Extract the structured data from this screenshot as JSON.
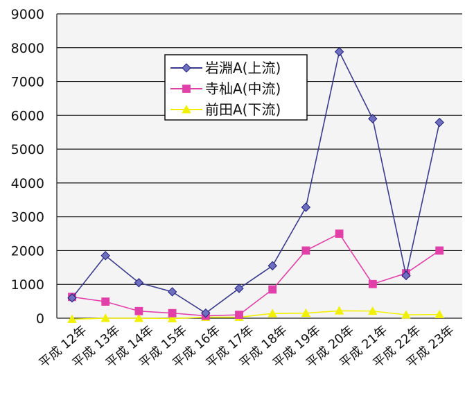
{
  "chart_data": {
    "type": "line",
    "categories": [
      "平成 12年",
      "平成 13年",
      "平成 14年",
      "平成 15年",
      "平成 16年",
      "平成 17年",
      "平成 18年",
      "平成 19年",
      "平成 20年",
      "平成 21年",
      "平成 22年",
      "平成 23年"
    ],
    "series": [
      {
        "name": "岩淵A(上流)",
        "values": [
          600,
          1850,
          1050,
          780,
          150,
          880,
          1550,
          3280,
          7880,
          5900,
          1260,
          5790
        ],
        "color": "#1f1f7a",
        "line_color": "#3a3a8c",
        "marker": "diamond",
        "marker_fill": "#6f6fc0"
      },
      {
        "name": "寺杣A(中流)",
        "values": [
          630,
          490,
          210,
          150,
          70,
          100,
          850,
          2000,
          2500,
          1010,
          1330,
          2000
        ],
        "color": "#e040a8",
        "line_color": "#e040a8",
        "marker": "square",
        "marker_fill": "#e040a8"
      },
      {
        "name": "前田A(下流)",
        "values": [
          -30,
          0,
          0,
          -10,
          30,
          30,
          140,
          150,
          220,
          210,
          100,
          110
        ],
        "color": "#f0f000",
        "line_color": "#f0f000",
        "marker": "triangle",
        "marker_fill": "#f0f000"
      }
    ],
    "yticks": [
      "0",
      "1000",
      "2000",
      "3000",
      "4000",
      "5000",
      "6000",
      "7000",
      "8000",
      "9000"
    ],
    "ylim": [
      0,
      9000
    ],
    "grid": true,
    "legend_position": "top-center"
  }
}
